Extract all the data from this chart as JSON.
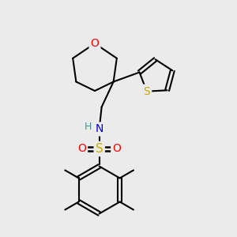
{
  "bg_color": "#ebebeb",
  "bond_color": "#000000",
  "atom_colors": {
    "O": "#ff0000",
    "S_thio": "#ccaa00",
    "S_sulfo": "#ccaa00",
    "N": "#0000ff",
    "H": "#4a9090",
    "O_sulfo": "#ff0000",
    "C": "#000000"
  },
  "figsize": [
    3.0,
    3.0
  ],
  "dpi": 100
}
